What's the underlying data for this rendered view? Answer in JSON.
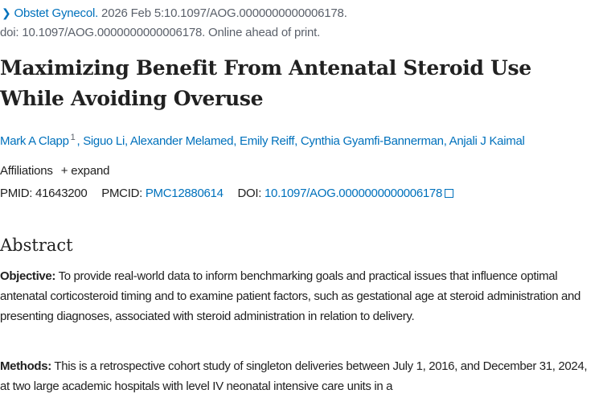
{
  "citation": {
    "journal": "Obstet Gynecol.",
    "details": " 2026 Feb 5:10.1097/AOG.0000000000006178.",
    "line2": "doi: 10.1097/AOG.0000000000006178. Online ahead of print."
  },
  "title": "Maximizing Benefit From Antenatal Steroid Use While Avoiding Overuse",
  "authors": [
    {
      "name": "Mark A Clapp",
      "sup": "1"
    },
    {
      "name": "Siguo Li"
    },
    {
      "name": "Alexander Melamed"
    },
    {
      "name": "Emily Reiff"
    },
    {
      "name": "Cynthia Gyamfi-Bannerman"
    },
    {
      "name": "Anjali J Kaimal"
    }
  ],
  "affiliations": {
    "label": "Affiliations",
    "expand": "+ expand"
  },
  "ids": {
    "pmid_label": "PMID:",
    "pmid": "41643200",
    "pmcid_label": "PMCID:",
    "pmcid": "PMC12880614",
    "doi_label": "DOI:",
    "doi": "10.1097/AOG.0000000000006178"
  },
  "abstract": {
    "heading": "Abstract",
    "objective_label": "Objective:",
    "objective": " To provide real-world data to inform benchmarking goals and practical issues that influence optimal antenatal corticosteroid timing and to examine patient factors, such as gestational age at steroid administration and presenting diagnoses, associated with steroid administration in relation to delivery.",
    "methods_label": "Methods:",
    "methods": " This is a retrospective cohort study of singleton deliveries between July 1, 2016, and December 31, 2024, at two large academic hospitals with level IV neonatal intensive care units in a"
  },
  "colors": {
    "link": "#0071bc",
    "text": "#212121",
    "muted": "#5b616b"
  }
}
